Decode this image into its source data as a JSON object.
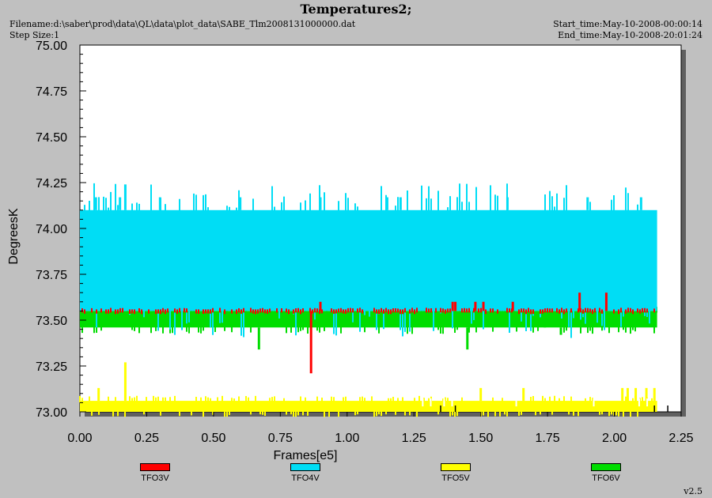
{
  "header": {
    "title": "Temperatures2;",
    "filename": "Filename:d:\\saber\\prod\\data\\QL\\data\\plot_data\\SABE_Tlm2008131000000.dat",
    "step_size": "Step Size:1",
    "start_time": "Start_time:May-10-2008-00:00:14",
    "end_time": "End_time:May-10-2008-20:01:24"
  },
  "version": "v2.5",
  "colors": {
    "TFO3V": "#ff0000",
    "TFO4V": "#00ddf5",
    "TFO5V": "#ffff00",
    "TFO6V": "#00dd00"
  },
  "chart_data": {
    "type": "line",
    "title": "Temperatures2;",
    "xlabel": "Frames[e5]",
    "ylabel": "DegreesK",
    "xlim": [
      0.0,
      2.25
    ],
    "ylim": [
      73.0,
      75.0
    ],
    "x_ticks": [
      "0.00",
      "0.25",
      "0.50",
      "0.75",
      "1.00",
      "1.25",
      "1.50",
      "1.75",
      "2.00",
      "2.25"
    ],
    "y_ticks": [
      "73.00",
      "73.25",
      "73.50",
      "73.75",
      "74.00",
      "74.25",
      "74.50",
      "74.75",
      "75.00"
    ],
    "grid": false,
    "legend_position": "bottom",
    "series": [
      {
        "name": "TFO3V",
        "color": "#ff0000",
        "data_range": [
          0.0,
          2.16
        ],
        "band": [
          73.55,
          73.55
        ],
        "spikes": [
          [
            0.865,
            73.21
          ],
          [
            0.9,
            73.6
          ],
          [
            1.395,
            73.6
          ],
          [
            1.405,
            73.6
          ],
          [
            1.48,
            73.6
          ],
          [
            1.51,
            73.6
          ],
          [
            1.62,
            73.6
          ],
          [
            1.87,
            73.65
          ],
          [
            1.97,
            73.65
          ]
        ]
      },
      {
        "name": "TFO4V",
        "color": "#00ddf5",
        "data_range": [
          0.0,
          2.16
        ],
        "band": [
          73.55,
          74.1
        ],
        "spikes": [
          [
            0.17,
            74.24
          ],
          [
            0.06,
            74.17
          ],
          [
            0.15,
            74.17
          ],
          [
            0.3,
            74.17
          ],
          [
            0.6,
            74.17
          ],
          [
            0.9,
            74.17
          ],
          [
            1.15,
            74.17
          ],
          [
            1.2,
            74.17
          ],
          [
            1.6,
            74.17
          ],
          [
            1.9,
            74.17
          ],
          [
            2.1,
            74.17
          ]
        ]
      },
      {
        "name": "TFO5V",
        "color": "#ffff00",
        "data_range": [
          0.0,
          2.16
        ],
        "band": [
          73.0,
          73.06
        ],
        "spikes": [
          [
            0.17,
            73.27
          ],
          [
            0.07,
            73.13
          ],
          [
            1.5,
            73.13
          ],
          [
            1.66,
            73.13
          ],
          [
            2.03,
            73.13
          ],
          [
            2.05,
            73.13
          ],
          [
            2.08,
            73.13
          ],
          [
            2.12,
            73.13
          ],
          [
            2.15,
            73.13
          ]
        ]
      },
      {
        "name": "TFO6V",
        "color": "#00dd00",
        "data_range": [
          0.0,
          2.16
        ],
        "band": [
          73.46,
          73.55
        ],
        "spikes": [
          [
            0.67,
            73.34
          ],
          [
            0.86,
            73.46
          ],
          [
            1.45,
            73.34
          ],
          [
            1.71,
            73.68
          ],
          [
            1.74,
            73.46
          ],
          [
            1.8,
            73.42
          ]
        ]
      }
    ]
  }
}
